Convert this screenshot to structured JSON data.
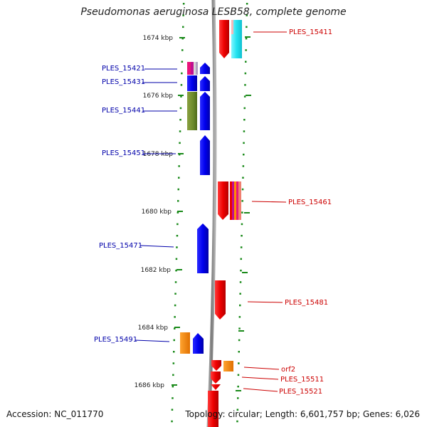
{
  "header": {
    "title": "Pseudomonas aeruginosa LESB58, complete genome"
  },
  "footer": {
    "accession": "Accession: NC_011770",
    "topology": "Topology: circular; Length: 6,601,757 bp; Genes: 6,026"
  },
  "axis": {
    "ticks": [
      "1674 kbp",
      "1676 kbp",
      "1678 kbp",
      "1680 kbp",
      "1682 kbp",
      "1684 kbp",
      "1686 kbp"
    ]
  },
  "genes": {
    "reverse": [
      "PLES_15421",
      "PLES_15431",
      "PLES_15441",
      "PLES_15451",
      "PLES_15471",
      "PLES_15491"
    ],
    "forward": [
      "PLES_15411",
      "PLES_15461",
      "PLES_15481",
      "orf2",
      "PLES_15511",
      "PLES_15521"
    ]
  },
  "colors": {
    "reverse_strand": "#0000cc",
    "forward_strand": "#cc0000",
    "backbone": "#888888",
    "tick_marks": "#1a8a1a"
  }
}
